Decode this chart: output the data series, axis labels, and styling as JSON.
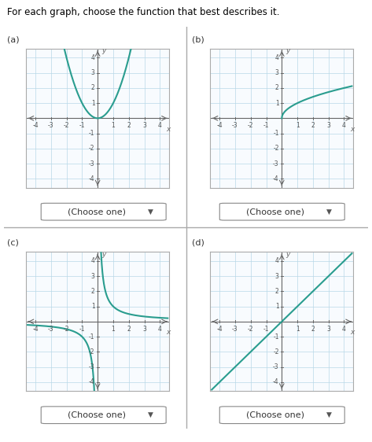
{
  "title_text": "For each graph, choose the function that best describes it.",
  "title_color": "#000000",
  "link_color": "#1a6bc4",
  "panel_labels": [
    "(a)",
    "(b)",
    "(c)",
    "(d)"
  ],
  "dropdown_text": "(Choose one)",
  "curve_color": "#2a9d8f",
  "axis_color": "#666666",
  "grid_color": "#b8d8e8",
  "tick_label_color": "#555555",
  "xlim": [
    -4.6,
    4.6
  ],
  "ylim": [
    -4.6,
    4.6
  ],
  "xticks": [
    -4,
    -3,
    -2,
    -1,
    1,
    2,
    3,
    4
  ],
  "yticks": [
    -4,
    -3,
    -2,
    -1,
    1,
    2,
    3,
    4
  ],
  "background_color": "#ffffff",
  "panel_bg": "#f8fbfe",
  "border_color": "#aaaaaa"
}
